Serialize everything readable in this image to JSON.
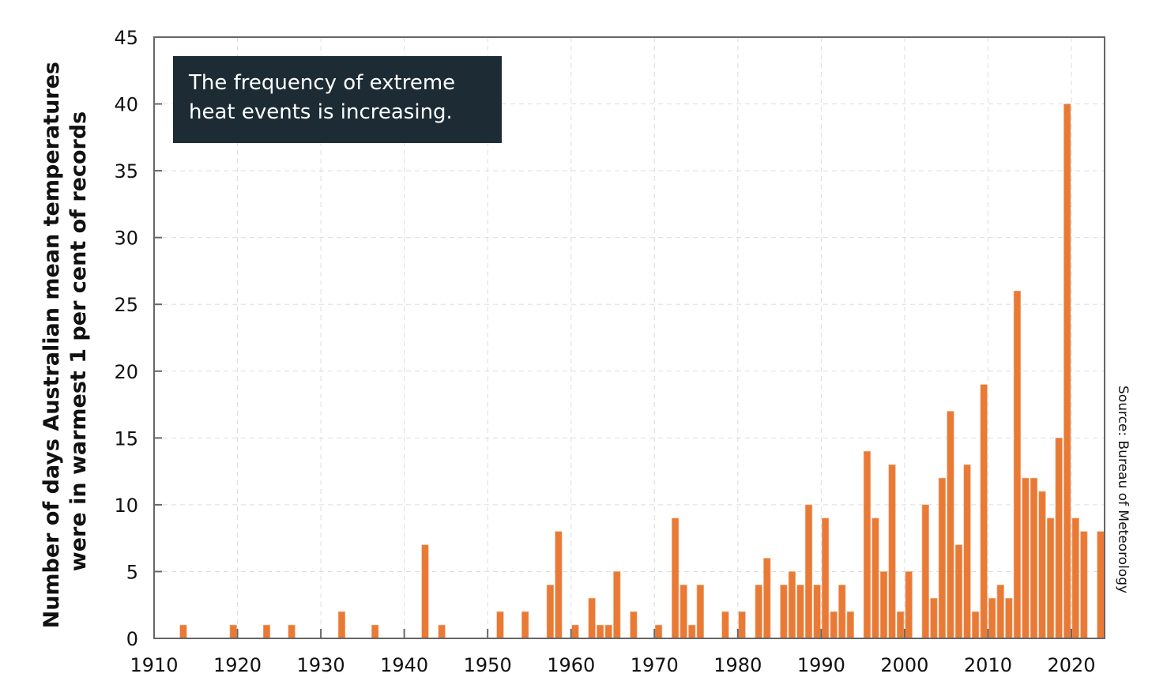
{
  "chart_data": {
    "type": "bar",
    "title": "",
    "annotation": "The frequency of extreme heat events is increasing.",
    "xlabel": "",
    "ylabel": "Number of days Australian mean temperatures were in warmest 1 per cent of records",
    "ylabel_lines": [
      "Number of days Australian mean temperatures",
      "were in warmest 1 per cent of records"
    ],
    "source": "Source: Bureau of Meteorology",
    "xlim": [
      1910,
      2024
    ],
    "ylim": [
      0,
      45
    ],
    "x_ticks": [
      "1910",
      "1920",
      "1930",
      "1940",
      "1950",
      "1960",
      "1970",
      "1980",
      "1990",
      "2000",
      "2010",
      "2020"
    ],
    "y_ticks": [
      "0",
      "5",
      "10",
      "15",
      "20",
      "25",
      "30",
      "35",
      "40",
      "45"
    ],
    "grid": true,
    "legend": null,
    "bar_color": "#e97a36",
    "series": [
      {
        "name": "Days in warmest 1%",
        "x": [
          1913,
          1919,
          1923,
          1926,
          1932,
          1936,
          1942,
          1944,
          1951,
          1954,
          1957,
          1958,
          1960,
          1962,
          1963,
          1964,
          1965,
          1967,
          1970,
          1972,
          1973,
          1974,
          1975,
          1978,
          1980,
          1982,
          1983,
          1985,
          1986,
          1987,
          1988,
          1989,
          1990,
          1991,
          1992,
          1993,
          1995,
          1996,
          1997,
          1998,
          1999,
          2000,
          2002,
          2003,
          2004,
          2005,
          2006,
          2007,
          2008,
          2009,
          2010,
          2011,
          2012,
          2013,
          2014,
          2015,
          2016,
          2017,
          2018,
          2019,
          2020,
          2021,
          2023
        ],
        "values": [
          1,
          1,
          1,
          1,
          2,
          1,
          7,
          1,
          2,
          2,
          4,
          8,
          1,
          3,
          1,
          1,
          5,
          2,
          1,
          9,
          4,
          1,
          4,
          2,
          2,
          4,
          6,
          4,
          5,
          4,
          10,
          4,
          9,
          2,
          4,
          2,
          14,
          9,
          5,
          13,
          2,
          5,
          10,
          3,
          12,
          17,
          7,
          13,
          2,
          19,
          3,
          4,
          3,
          26,
          12,
          12,
          11,
          9,
          15,
          40,
          9,
          8,
          8
        ]
      }
    ]
  },
  "colors": {
    "bar": "#e97a36",
    "callout_bg": "#1c2b34",
    "callout_text": "#ffffff",
    "axis": "#666666",
    "grid": "#dddddd"
  }
}
